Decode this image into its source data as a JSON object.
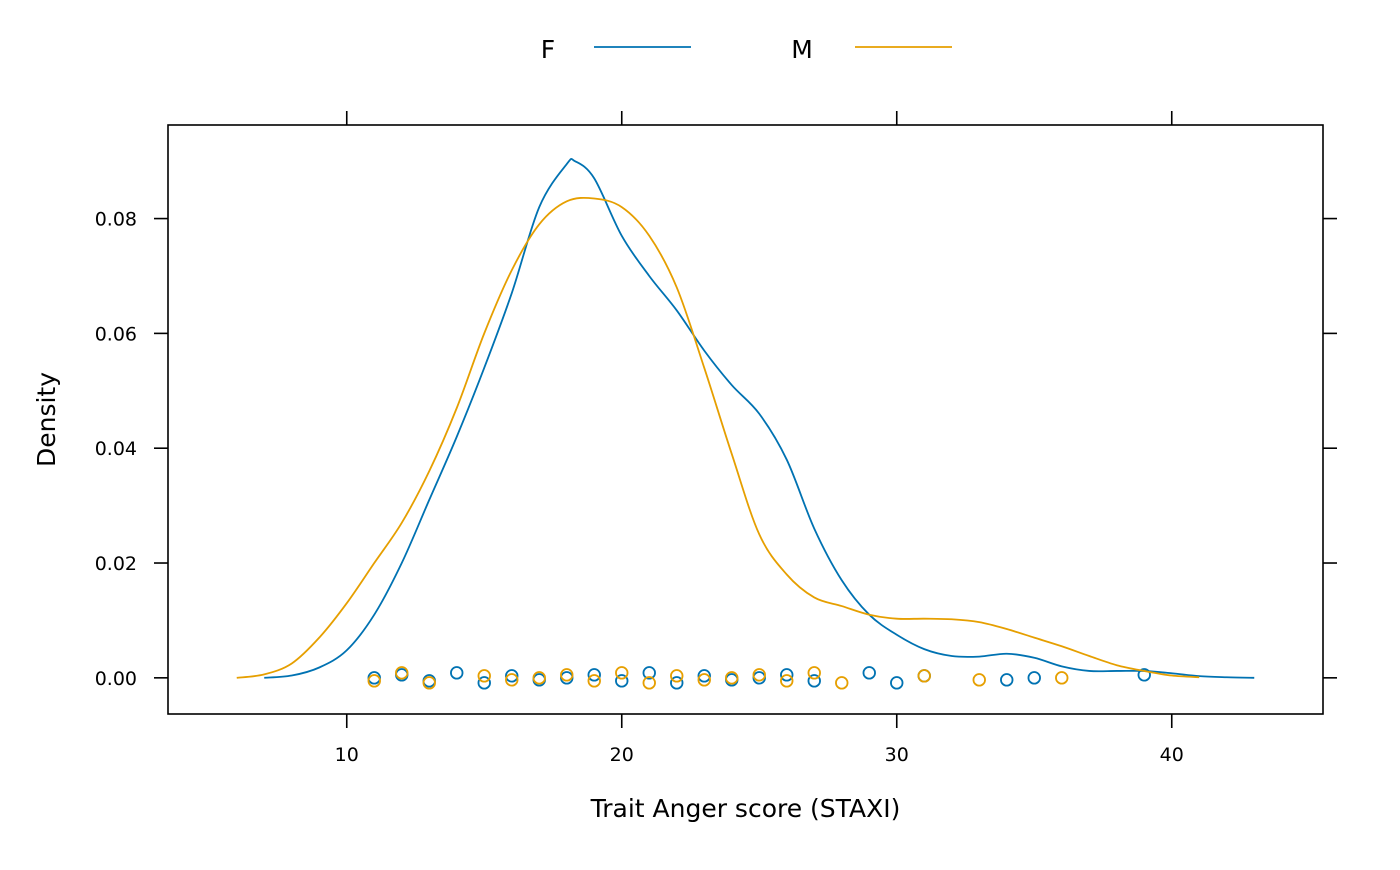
{
  "chart_data": {
    "type": "line",
    "subtype": "density-plot-with-rug-points",
    "title": "",
    "xlabel": "Trait Anger score (STAXI)",
    "ylabel": "Density",
    "xlim": [
      3.5,
      45.5
    ],
    "ylim": [
      -0.0063,
      0.0963
    ],
    "x_ticks": [
      10,
      20,
      30,
      40
    ],
    "y_ticks": [
      0.0,
      0.02,
      0.04,
      0.06,
      0.08
    ],
    "x_tick_labels": [
      "10",
      "20",
      "30",
      "40"
    ],
    "y_tick_labels": [
      "0.00",
      "0.02",
      "0.04",
      "0.06",
      "0.08"
    ],
    "grid": false,
    "legend_position": "top",
    "series": [
      {
        "name": "F",
        "color": "#0072B2",
        "x": [
          7,
          8,
          9,
          10,
          11,
          12,
          13,
          14,
          15,
          16,
          17,
          18,
          18.3,
          19,
          20,
          21,
          22,
          23,
          24,
          25,
          26,
          27,
          28,
          29,
          30,
          31,
          32,
          33,
          34,
          35,
          36,
          37,
          38,
          39,
          40,
          41,
          42,
          43
        ],
        "y": [
          0.0,
          0.0004,
          0.0018,
          0.0048,
          0.011,
          0.02,
          0.031,
          0.042,
          0.054,
          0.067,
          0.082,
          0.0895,
          0.09,
          0.087,
          0.077,
          0.07,
          0.064,
          0.057,
          0.051,
          0.046,
          0.038,
          0.026,
          0.017,
          0.011,
          0.0075,
          0.005,
          0.0038,
          0.0037,
          0.0042,
          0.0035,
          0.002,
          0.0012,
          0.0012,
          0.0012,
          0.0008,
          0.0003,
          0.0001,
          0.0
        ],
        "rug_points": [
          11,
          12,
          13,
          14,
          15,
          16,
          17,
          18,
          19,
          20,
          21,
          22,
          23,
          24,
          25,
          26,
          27,
          29,
          30,
          31,
          34,
          35,
          39
        ]
      },
      {
        "name": "M",
        "color": "#E69F00",
        "x": [
          6,
          7,
          8,
          9,
          10,
          11,
          12,
          13,
          14,
          15,
          16,
          17,
          18,
          19,
          20,
          21,
          22,
          23,
          24,
          25,
          26,
          27,
          28,
          29,
          30,
          31,
          32,
          33,
          34,
          35,
          36,
          37,
          38,
          39,
          40,
          41
        ],
        "y": [
          0.0,
          0.0006,
          0.0025,
          0.007,
          0.013,
          0.02,
          0.027,
          0.036,
          0.047,
          0.06,
          0.071,
          0.079,
          0.083,
          0.0835,
          0.082,
          0.077,
          0.068,
          0.054,
          0.039,
          0.025,
          0.018,
          0.014,
          0.0125,
          0.011,
          0.0103,
          0.0103,
          0.0102,
          0.0097,
          0.0085,
          0.007,
          0.0055,
          0.0038,
          0.0022,
          0.0012,
          0.0004,
          0.0001
        ],
        "rug_points": [
          11,
          12,
          13,
          15,
          16,
          17,
          18,
          19,
          20,
          21,
          22,
          23,
          24,
          25,
          26,
          27,
          28,
          31,
          33,
          36
        ]
      }
    ]
  }
}
